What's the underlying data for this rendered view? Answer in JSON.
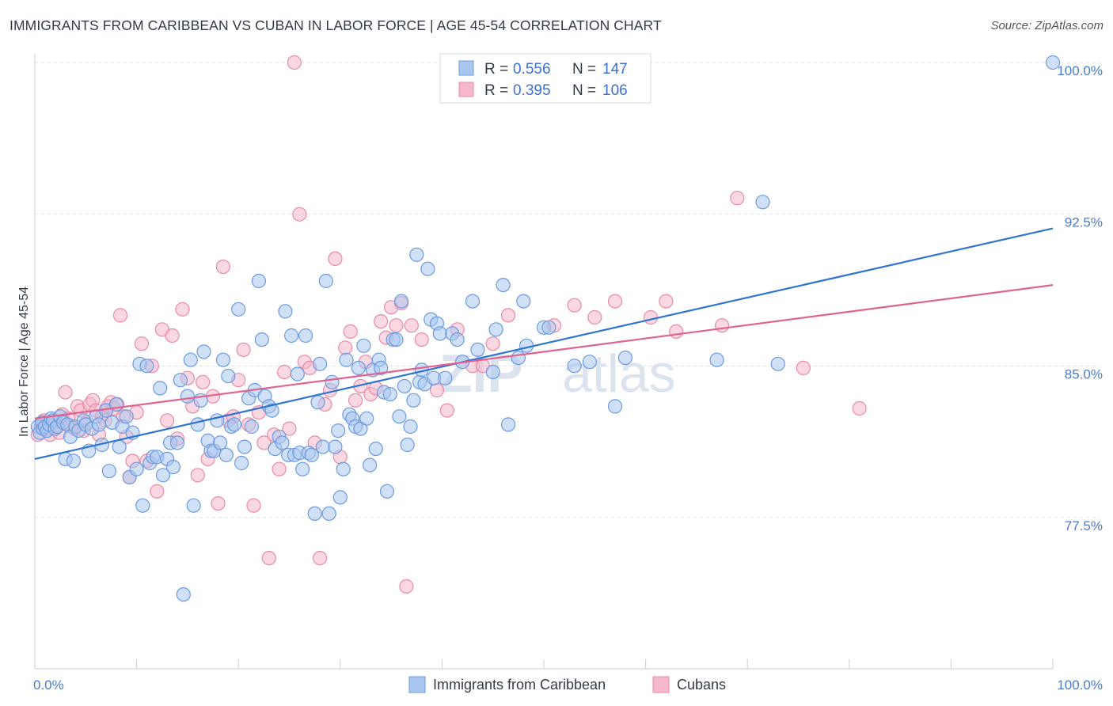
{
  "title": "IMMIGRANTS FROM CARIBBEAN VS CUBAN IN LABOR FORCE | AGE 45-54 CORRELATION CHART",
  "source": "Source: ZipAtlas.com",
  "watermark": {
    "zip": "ZIP",
    "atlas": "atlas"
  },
  "colors": {
    "blue_fill": "#a9c6ef",
    "blue_stroke": "#6c9ae0",
    "blue_line": "#2f74d0",
    "pink_fill": "#f5b8cb",
    "pink_stroke": "#e98aa8",
    "pink_line": "#e0638f",
    "grid": "#dde1e6",
    "axis_label": "#4a7bd0"
  },
  "legend": {
    "r_label": "R =",
    "n_label": "N =",
    "series": [
      {
        "r": "0.556",
        "n": "147"
      },
      {
        "r": "0.395",
        "n": "106"
      }
    ]
  },
  "chart_data": {
    "type": "scatter",
    "xlabel": "",
    "ylabel": "In Labor Force | Age 45-54",
    "xlim": [
      0,
      100
    ],
    "ylim": [
      71.5,
      101.5
    ],
    "x_ticks": [
      "0.0%",
      "100.0%"
    ],
    "y_ticks": [
      {
        "value": 100.0,
        "label": "100.0%"
      },
      {
        "value": 92.5,
        "label": "92.5%"
      },
      {
        "value": 85.0,
        "label": "85.0%"
      },
      {
        "value": 77.5,
        "label": "77.5%"
      }
    ],
    "grid": "horizontal dashed",
    "legend_position": "top-center",
    "series": [
      {
        "name": "Immigrants from Caribbean",
        "color": "#a9c6ef",
        "trend": {
          "x": [
            0,
            100
          ],
          "y": [
            80.4,
            91.8
          ]
        },
        "points": [
          [
            0.3,
            82.0
          ],
          [
            0.5,
            81.7
          ],
          [
            0.7,
            82.2
          ],
          [
            0.8,
            81.9
          ],
          [
            1.0,
            82.0
          ],
          [
            1.2,
            81.8
          ],
          [
            1.4,
            82.1
          ],
          [
            1.6,
            82.4
          ],
          [
            1.8,
            82.3
          ],
          [
            2.0,
            81.9
          ],
          [
            2.2,
            82.0
          ],
          [
            2.5,
            82.5
          ],
          [
            2.8,
            82.2
          ],
          [
            3.0,
            80.4
          ],
          [
            3.2,
            82.1
          ],
          [
            3.5,
            81.5
          ],
          [
            3.8,
            80.3
          ],
          [
            4.0,
            82.0
          ],
          [
            4.3,
            81.8
          ],
          [
            4.8,
            82.3
          ],
          [
            5.0,
            82.1
          ],
          [
            5.3,
            80.8
          ],
          [
            5.6,
            81.9
          ],
          [
            6.0,
            82.5
          ],
          [
            6.3,
            82.1
          ],
          [
            6.6,
            81.1
          ],
          [
            7.0,
            82.8
          ],
          [
            7.3,
            79.8
          ],
          [
            7.6,
            82.2
          ],
          [
            8.0,
            83.1
          ],
          [
            8.3,
            81.0
          ],
          [
            8.6,
            82.0
          ],
          [
            9.0,
            82.5
          ],
          [
            9.3,
            79.5
          ],
          [
            9.6,
            81.7
          ],
          [
            10.0,
            79.9
          ],
          [
            10.3,
            85.1
          ],
          [
            10.6,
            78.1
          ],
          [
            11.0,
            85.0
          ],
          [
            11.3,
            80.2
          ],
          [
            11.6,
            80.5
          ],
          [
            12.0,
            80.5
          ],
          [
            12.3,
            83.9
          ],
          [
            12.6,
            79.6
          ],
          [
            13.0,
            80.4
          ],
          [
            13.3,
            81.2
          ],
          [
            13.6,
            80.0
          ],
          [
            14.0,
            81.2
          ],
          [
            14.3,
            84.3
          ],
          [
            14.6,
            73.7
          ],
          [
            15.0,
            83.5
          ],
          [
            15.3,
            85.3
          ],
          [
            15.6,
            78.1
          ],
          [
            16.0,
            82.1
          ],
          [
            16.3,
            83.3
          ],
          [
            16.6,
            85.7
          ],
          [
            17.0,
            81.3
          ],
          [
            17.3,
            80.8
          ],
          [
            17.6,
            80.8
          ],
          [
            17.9,
            82.3
          ],
          [
            18.2,
            81.2
          ],
          [
            18.5,
            85.3
          ],
          [
            18.8,
            80.6
          ],
          [
            19.0,
            84.5
          ],
          [
            19.3,
            82.0
          ],
          [
            19.6,
            82.1
          ],
          [
            20.0,
            87.8
          ],
          [
            20.3,
            80.2
          ],
          [
            20.6,
            81.0
          ],
          [
            21.0,
            83.4
          ],
          [
            21.3,
            82.0
          ],
          [
            21.6,
            83.8
          ],
          [
            22.0,
            89.2
          ],
          [
            22.3,
            86.3
          ],
          [
            22.6,
            83.5
          ],
          [
            23.0,
            83.0
          ],
          [
            23.3,
            82.8
          ],
          [
            23.6,
            80.9
          ],
          [
            24.0,
            81.5
          ],
          [
            24.3,
            81.2
          ],
          [
            24.6,
            87.7
          ],
          [
            24.9,
            80.6
          ],
          [
            25.2,
            86.5
          ],
          [
            25.5,
            80.6
          ],
          [
            25.8,
            84.6
          ],
          [
            26.0,
            80.7
          ],
          [
            26.3,
            79.9
          ],
          [
            26.6,
            86.5
          ],
          [
            26.9,
            80.7
          ],
          [
            27.2,
            80.6
          ],
          [
            27.5,
            77.7
          ],
          [
            27.8,
            83.2
          ],
          [
            28.0,
            85.1
          ],
          [
            28.3,
            81.0
          ],
          [
            28.6,
            89.2
          ],
          [
            28.9,
            77.7
          ],
          [
            29.2,
            84.2
          ],
          [
            29.5,
            81.0
          ],
          [
            29.8,
            81.8
          ],
          [
            30.0,
            78.5
          ],
          [
            30.3,
            79.9
          ],
          [
            30.6,
            85.3
          ],
          [
            30.9,
            82.6
          ],
          [
            31.2,
            82.4
          ],
          [
            31.5,
            82.0
          ],
          [
            31.8,
            84.9
          ],
          [
            32.0,
            81.9
          ],
          [
            32.3,
            86.0
          ],
          [
            32.6,
            82.4
          ],
          [
            32.9,
            80.1
          ],
          [
            33.2,
            84.8
          ],
          [
            33.5,
            80.9
          ],
          [
            33.8,
            85.3
          ],
          [
            34.0,
            84.9
          ],
          [
            34.3,
            83.7
          ],
          [
            34.6,
            78.8
          ],
          [
            34.9,
            83.6
          ],
          [
            35.2,
            86.3
          ],
          [
            35.5,
            86.3
          ],
          [
            35.8,
            82.5
          ],
          [
            36.0,
            88.2
          ],
          [
            36.3,
            84.0
          ],
          [
            36.6,
            81.1
          ],
          [
            36.9,
            82.0
          ],
          [
            37.2,
            83.3
          ],
          [
            37.5,
            90.5
          ],
          [
            37.8,
            84.2
          ],
          [
            38.0,
            84.8
          ],
          [
            38.3,
            84.1
          ],
          [
            38.6,
            89.8
          ],
          [
            38.9,
            87.3
          ],
          [
            39.2,
            84.4
          ],
          [
            39.5,
            87.1
          ],
          [
            39.8,
            86.6
          ],
          [
            40.3,
            84.4
          ],
          [
            41.0,
            86.6
          ],
          [
            41.5,
            86.3
          ],
          [
            42.0,
            85.2
          ],
          [
            43.0,
            88.2
          ],
          [
            43.5,
            85.8
          ],
          [
            45.0,
            84.7
          ],
          [
            45.3,
            86.8
          ],
          [
            46.0,
            89.0
          ],
          [
            46.5,
            82.1
          ],
          [
            47.5,
            85.4
          ],
          [
            48.0,
            88.2
          ],
          [
            48.3,
            86.0
          ],
          [
            50.0,
            86.9
          ],
          [
            50.5,
            86.9
          ],
          [
            53.0,
            85.0
          ],
          [
            54.5,
            85.2
          ],
          [
            57.0,
            83.0
          ],
          [
            58.0,
            85.4
          ],
          [
            67.0,
            85.3
          ],
          [
            71.5,
            93.1
          ],
          [
            73.0,
            85.1
          ],
          [
            100.0,
            100.0
          ]
        ]
      },
      {
        "name": "Cubans",
        "color": "#f5b8cb",
        "trend": {
          "x": [
            0,
            100
          ],
          "y": [
            82.4,
            89.0
          ]
        },
        "points": [
          [
            0.3,
            81.6
          ],
          [
            0.6,
            82.0
          ],
          [
            0.9,
            82.3
          ],
          [
            1.2,
            81.9
          ],
          [
            1.5,
            81.6
          ],
          [
            1.8,
            82.3
          ],
          [
            2.1,
            82.0
          ],
          [
            2.4,
            81.7
          ],
          [
            2.7,
            82.6
          ],
          [
            3.0,
            83.7
          ],
          [
            3.3,
            82.4
          ],
          [
            3.6,
            82.0
          ],
          [
            3.9,
            81.9
          ],
          [
            4.2,
            83.0
          ],
          [
            4.5,
            82.8
          ],
          [
            4.8,
            81.8
          ],
          [
            5.1,
            82.2
          ],
          [
            5.4,
            83.1
          ],
          [
            5.7,
            83.3
          ],
          [
            6.0,
            82.8
          ],
          [
            6.3,
            81.6
          ],
          [
            6.6,
            82.5
          ],
          [
            6.9,
            82.3
          ],
          [
            7.2,
            83.0
          ],
          [
            7.5,
            83.2
          ],
          [
            7.8,
            82.9
          ],
          [
            8.1,
            83.1
          ],
          [
            8.4,
            87.5
          ],
          [
            8.7,
            82.5
          ],
          [
            9.0,
            81.5
          ],
          [
            9.3,
            79.5
          ],
          [
            9.6,
            80.3
          ],
          [
            10.0,
            82.7
          ],
          [
            10.5,
            86.1
          ],
          [
            11.0,
            80.3
          ],
          [
            11.5,
            85.0
          ],
          [
            12.0,
            78.8
          ],
          [
            12.5,
            86.8
          ],
          [
            13.0,
            82.3
          ],
          [
            13.5,
            86.5
          ],
          [
            14.0,
            81.4
          ],
          [
            14.5,
            87.8
          ],
          [
            15.0,
            84.4
          ],
          [
            15.5,
            83.0
          ],
          [
            16.0,
            79.6
          ],
          [
            16.5,
            84.2
          ],
          [
            17.0,
            80.4
          ],
          [
            17.5,
            83.5
          ],
          [
            18.0,
            78.2
          ],
          [
            18.5,
            89.9
          ],
          [
            19.0,
            82.3
          ],
          [
            19.5,
            82.5
          ],
          [
            20.0,
            84.3
          ],
          [
            20.5,
            85.8
          ],
          [
            21.0,
            82.1
          ],
          [
            21.5,
            78.1
          ],
          [
            22.0,
            82.7
          ],
          [
            22.5,
            81.2
          ],
          [
            23.0,
            75.5
          ],
          [
            23.5,
            81.6
          ],
          [
            24.0,
            79.9
          ],
          [
            24.5,
            84.7
          ],
          [
            25.0,
            81.9
          ],
          [
            25.5,
            100.0
          ],
          [
            26.0,
            92.5
          ],
          [
            26.5,
            85.2
          ],
          [
            27.0,
            84.9
          ],
          [
            27.5,
            81.2
          ],
          [
            28.0,
            75.5
          ],
          [
            28.5,
            83.1
          ],
          [
            29.0,
            83.8
          ],
          [
            29.5,
            90.3
          ],
          [
            30.0,
            80.5
          ],
          [
            30.5,
            85.9
          ],
          [
            31.0,
            86.7
          ],
          [
            31.5,
            83.3
          ],
          [
            32.0,
            84.0
          ],
          [
            32.5,
            85.2
          ],
          [
            33.0,
            83.6
          ],
          [
            33.5,
            83.9
          ],
          [
            34.0,
            87.2
          ],
          [
            34.5,
            86.4
          ],
          [
            35.0,
            87.9
          ],
          [
            35.5,
            87.0
          ],
          [
            36.0,
            88.1
          ],
          [
            36.5,
            74.1
          ],
          [
            37.0,
            87.0
          ],
          [
            38.0,
            86.3
          ],
          [
            39.5,
            83.8
          ],
          [
            40.5,
            82.8
          ],
          [
            41.5,
            86.8
          ],
          [
            43.0,
            85.0
          ],
          [
            44.0,
            85.0
          ],
          [
            45.0,
            86.1
          ],
          [
            46.5,
            87.5
          ],
          [
            51.0,
            87.0
          ],
          [
            53.0,
            88.0
          ],
          [
            55.0,
            87.4
          ],
          [
            57.0,
            88.2
          ],
          [
            60.5,
            87.4
          ],
          [
            62.0,
            88.2
          ],
          [
            63.0,
            86.7
          ],
          [
            67.5,
            87.0
          ],
          [
            69.0,
            93.3
          ],
          [
            75.5,
            84.9
          ],
          [
            81.0,
            82.9
          ]
        ]
      }
    ]
  }
}
